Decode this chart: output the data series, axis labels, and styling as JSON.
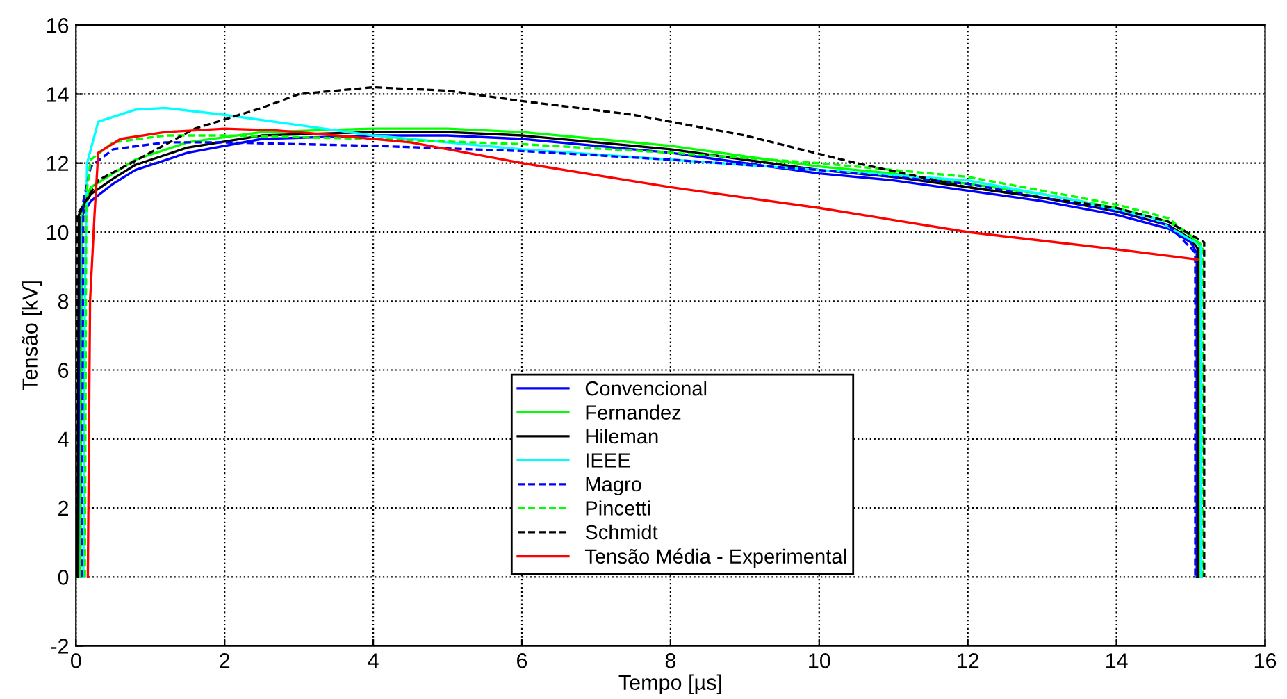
{
  "chart_data": {
    "type": "line",
    "xlabel": "Tempo [µs]",
    "ylabel": "Tensão [kV]",
    "xlim": [
      0,
      16
    ],
    "ylim": [
      -2,
      16
    ],
    "xticks": [
      0,
      2,
      4,
      6,
      8,
      10,
      12,
      14,
      16
    ],
    "yticks": [
      -2,
      0,
      2,
      4,
      6,
      8,
      10,
      12,
      14,
      16
    ],
    "grid": true,
    "legend": "bottom",
    "marker": "none",
    "series": [
      {
        "name": "Convencional",
        "color": "#0000ff",
        "line_style": "solid",
        "x": [
          0.04,
          0.06,
          0.2,
          0.5,
          0.8,
          1.5,
          2.5,
          4,
          5,
          6,
          7,
          8,
          9,
          10,
          11,
          12,
          13,
          14,
          14.7,
          15.0,
          15.08,
          15.08
        ],
        "values": [
          0,
          10.4,
          10.9,
          11.4,
          11.8,
          12.3,
          12.7,
          12.8,
          12.8,
          12.7,
          12.5,
          12.3,
          12,
          11.7,
          11.5,
          11.2,
          10.9,
          10.5,
          10.1,
          9.7,
          9.4,
          0
        ]
      },
      {
        "name": "Fernandez",
        "color": "#00ff00",
        "line_style": "solid",
        "x": [
          0.06,
          0.08,
          0.2,
          0.5,
          0.8,
          1.5,
          2.5,
          4,
          5,
          6,
          7,
          8,
          9,
          10,
          11,
          12,
          13,
          14,
          14.7,
          15.0,
          15.12,
          15.12
        ],
        "values": [
          0,
          10.7,
          11.3,
          11.7,
          12.1,
          12.6,
          12.9,
          13,
          13,
          12.9,
          12.7,
          12.5,
          12.2,
          11.9,
          11.7,
          11.4,
          11.1,
          10.7,
          10.3,
          9.9,
          9.6,
          0
        ]
      },
      {
        "name": "Hileman",
        "color": "#000000",
        "line_style": "solid",
        "x": [
          0.02,
          0.04,
          0.2,
          0.5,
          0.8,
          1.5,
          2.5,
          4,
          5,
          6,
          7,
          8,
          9,
          10,
          11,
          12,
          13,
          14,
          14.7,
          15.0,
          15.1,
          15.1
        ],
        "values": [
          0,
          10.5,
          11.1,
          11.55,
          11.95,
          12.45,
          12.8,
          12.9,
          12.9,
          12.8,
          12.6,
          12.4,
          12.1,
          11.8,
          11.6,
          11.3,
          11,
          10.6,
          10.2,
          9.8,
          9.5,
          0
        ]
      },
      {
        "name": "IEEE",
        "color": "#00ffff",
        "line_style": "solid",
        "x": [
          0.1,
          0.12,
          0.15,
          0.3,
          0.8,
          1.2,
          2,
          3,
          4,
          6,
          8,
          10,
          12,
          13.5,
          14.5,
          15.14,
          15.14
        ],
        "values": [
          0,
          8,
          12,
          13.2,
          13.55,
          13.6,
          13.4,
          13.1,
          12.8,
          12.4,
          12.1,
          11.8,
          11.5,
          10.9,
          10.4,
          9.6,
          0
        ]
      },
      {
        "name": "Magro",
        "color": "#0000ff",
        "line_style": "dashed",
        "x": [
          0.08,
          0.1,
          0.2,
          0.5,
          1.2,
          2,
          3,
          4,
          6,
          8,
          10,
          12,
          13,
          14,
          14.7,
          15.06,
          15.06
        ],
        "values": [
          0,
          10.9,
          11.9,
          12.4,
          12.6,
          12.6,
          12.55,
          12.5,
          12.35,
          12.1,
          11.8,
          11.4,
          11,
          10.6,
          10.2,
          9.4,
          0
        ]
      },
      {
        "name": "Pincetti",
        "color": "#00ff00",
        "line_style": "dashed",
        "x": [
          0.12,
          0.14,
          0.2,
          0.5,
          1.2,
          2,
          3,
          4,
          6,
          8,
          10,
          12,
          13,
          14,
          14.7,
          15.16,
          15.16
        ],
        "values": [
          0,
          11.1,
          12.1,
          12.6,
          12.8,
          12.8,
          12.75,
          12.7,
          12.55,
          12.3,
          12,
          11.6,
          11.2,
          10.8,
          10.4,
          9.6,
          0
        ]
      },
      {
        "name": "Schmidt",
        "color": "#000000",
        "line_style": "dashed",
        "x": [
          0,
          0.02,
          0.3,
          1,
          1.6,
          2.5,
          3,
          4,
          5,
          6,
          7.5,
          9,
          10.5,
          12,
          14,
          14.7,
          15.18,
          15.18
        ],
        "values": [
          0,
          10.5,
          11.5,
          12.3,
          13,
          13.6,
          14,
          14.2,
          14.1,
          13.8,
          13.4,
          12.8,
          12,
          11.3,
          10.7,
          10.3,
          9.7,
          0
        ]
      },
      {
        "name": "Tensão Média - Experimental",
        "color": "#ff0000",
        "line_style": "solid",
        "x": [
          0.16,
          0.19,
          0.25,
          0.3,
          0.6,
          1.2,
          2,
          2.7,
          3.5,
          4.5,
          6,
          8,
          10,
          12,
          14,
          15.1
        ],
        "values": [
          0,
          8,
          10.5,
          12.3,
          12.7,
          12.9,
          13,
          12.95,
          12.8,
          12.6,
          12,
          11.3,
          10.7,
          10,
          9.5,
          9.2
        ]
      }
    ]
  }
}
